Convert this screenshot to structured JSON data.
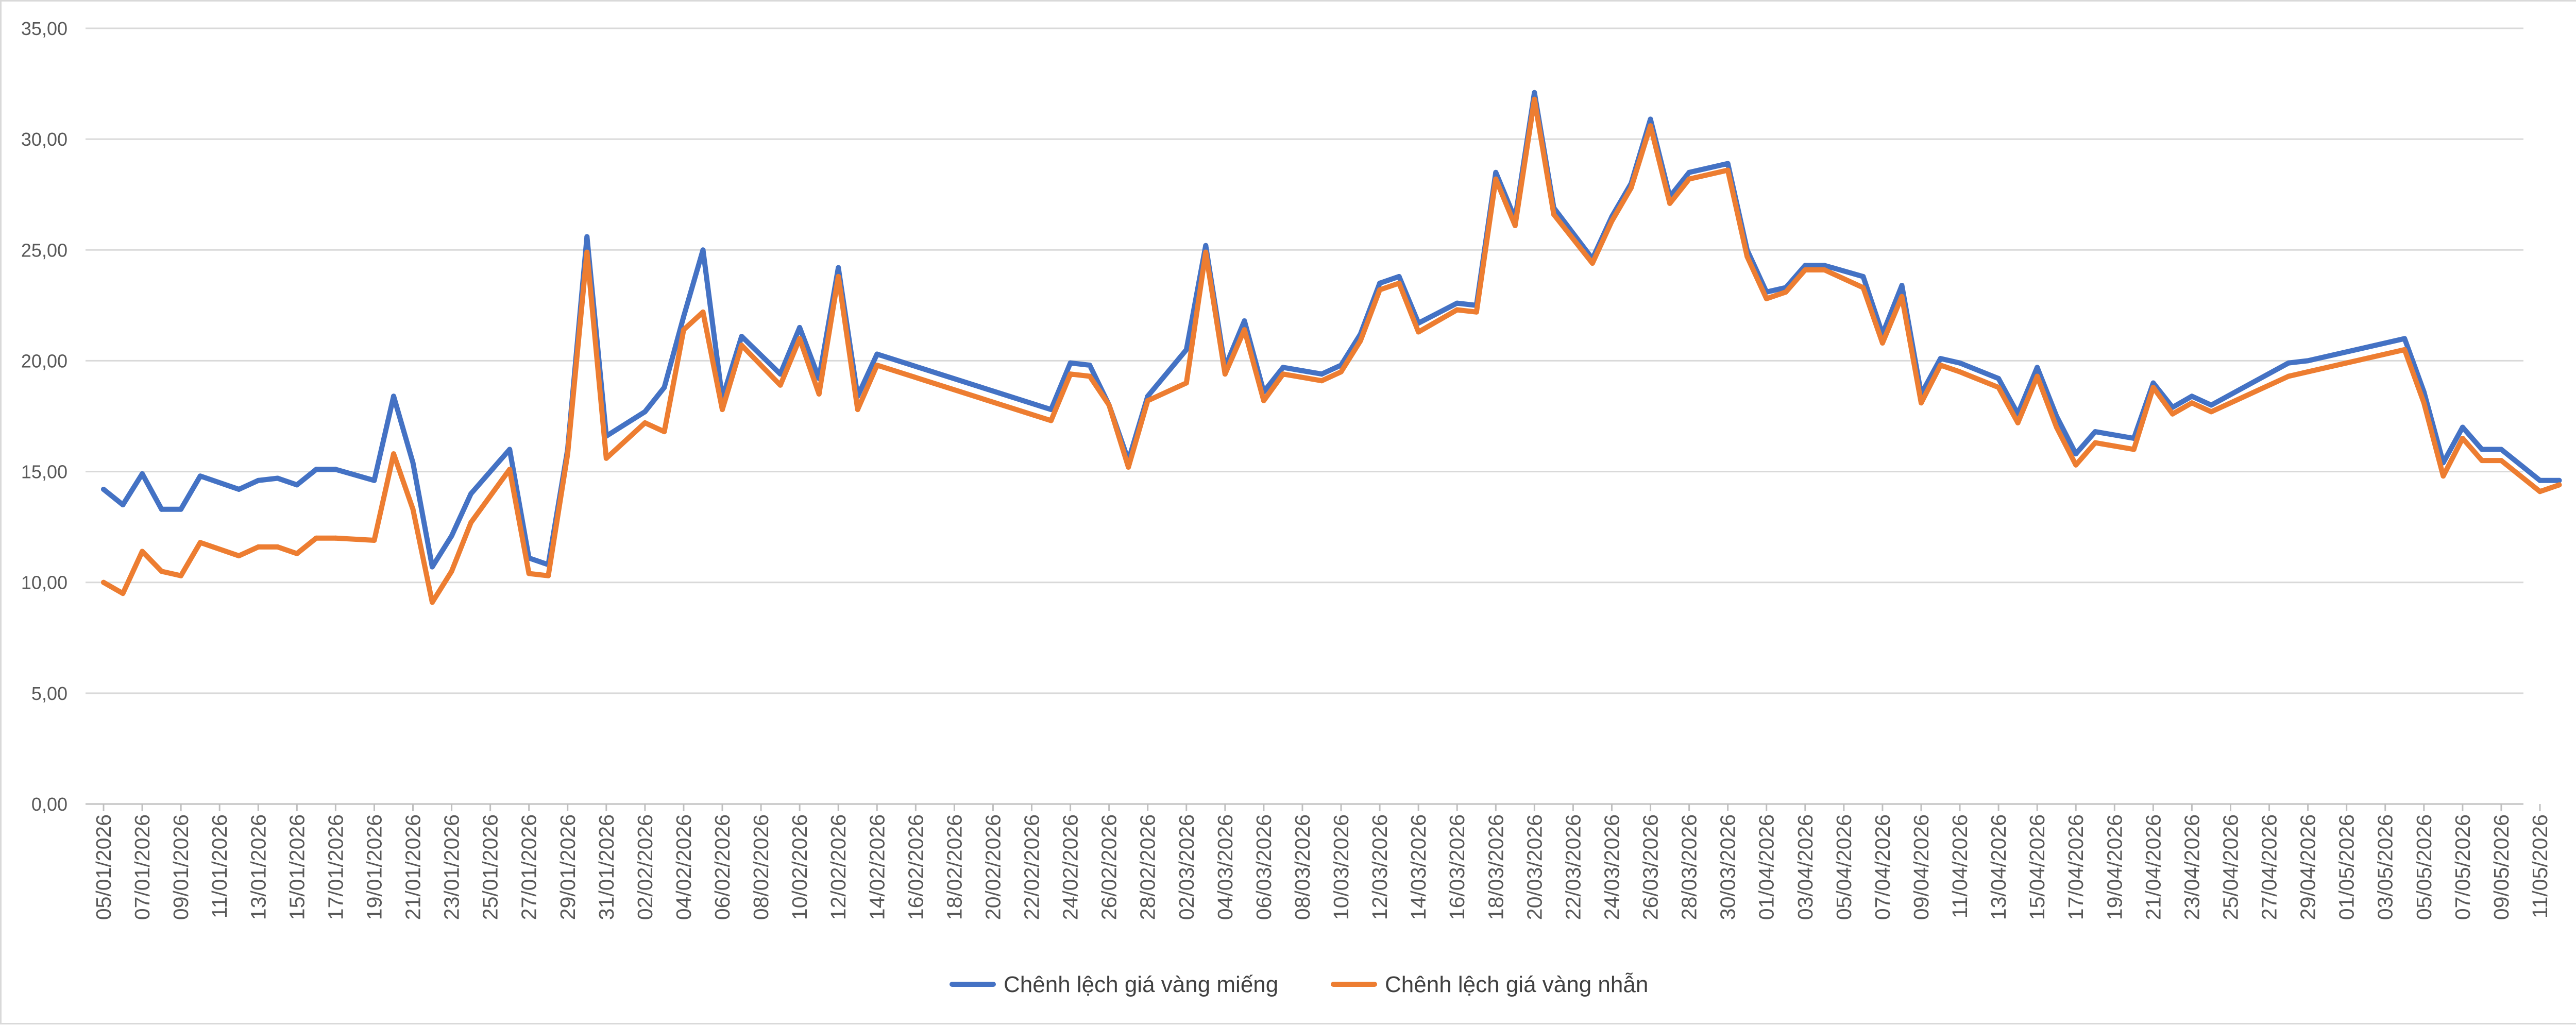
{
  "chart_data": {
    "type": "line",
    "title": "",
    "xlabel": "",
    "ylabel": "",
    "ylim": [
      0,
      35
    ],
    "y_ticks": [
      "0,00",
      "5,00",
      "10,00",
      "15,00",
      "20,00",
      "25,00",
      "30,00",
      "35,00"
    ],
    "grid": true,
    "legend_position": "bottom",
    "x": [
      "05/01/2026",
      "06/01/2026",
      "07/01/2026",
      "08/01/2026",
      "09/01/2026",
      "10/01/2026",
      "12/01/2026",
      "13/01/2026",
      "14/01/2026",
      "15/01/2026",
      "16/01/2026",
      "17/01/2026",
      "19/01/2026",
      "20/01/2026",
      "21/01/2026",
      "22/01/2026",
      "23/01/2026",
      "24/01/2026",
      "26/01/2026",
      "27/01/2026",
      "28/01/2026",
      "29/01/2026",
      "30/01/2026",
      "31/01/2026",
      "02/02/2026",
      "03/02/2026",
      "04/02/2026",
      "05/02/2026",
      "06/02/2026",
      "07/02/2026",
      "09/02/2026",
      "10/02/2026",
      "11/02/2026",
      "12/02/2026",
      "13/02/2026",
      "14/02/2026",
      "23/02/2026",
      "24/02/2026",
      "25/02/2026",
      "26/02/2026",
      "27/02/2026",
      "28/02/2026",
      "02/03/2026",
      "03/03/2026",
      "04/03/2026",
      "05/03/2026",
      "06/03/2026",
      "07/03/2026",
      "09/03/2026",
      "10/03/2026",
      "11/03/2026",
      "12/03/2026",
      "13/03/2026",
      "14/03/2026",
      "16/03/2026",
      "17/03/2026",
      "18/03/2026",
      "19/03/2026",
      "20/03/2026",
      "21/03/2026",
      "23/03/2026",
      "24/03/2026",
      "25/03/2026",
      "26/03/2026",
      "27/03/2026",
      "28/03/2026",
      "30/03/2026",
      "31/03/2026",
      "01/04/2026",
      "02/04/2026",
      "03/04/2026",
      "04/04/2026",
      "06/04/2026",
      "07/04/2026",
      "08/04/2026",
      "09/04/2026",
      "10/04/2026",
      "11/04/2026",
      "13/04/2026",
      "14/04/2026",
      "15/04/2026",
      "16/04/2026",
      "17/04/2026",
      "18/04/2026",
      "20/04/2026",
      "21/04/2026",
      "22/04/2026",
      "23/04/2026",
      "24/04/2026",
      "28/04/2026",
      "29/04/2026",
      "04/05/2026",
      "05/05/2026",
      "06/05/2026",
      "07/05/2026",
      "08/05/2026",
      "09/05/2026",
      "11/05/2026",
      "12/05/2026"
    ],
    "x_tick_labels": [
      "05/01/2026",
      "07/01/2026",
      "09/01/2026",
      "11/01/2026",
      "13/01/2026",
      "15/01/2026",
      "17/01/2026",
      "19/01/2026",
      "21/01/2026",
      "23/01/2026",
      "25/01/2026",
      "27/01/2026",
      "29/01/2026",
      "31/01/2026",
      "02/02/2026",
      "04/02/2026",
      "06/02/2026",
      "08/02/2026",
      "10/02/2026",
      "12/02/2026",
      "14/02/2026",
      "16/02/2026",
      "18/02/2026",
      "20/02/2026",
      "22/02/2026",
      "24/02/2026",
      "26/02/2026",
      "28/02/2026",
      "02/03/2026",
      "04/03/2026",
      "06/03/2026",
      "08/03/2026",
      "10/03/2026",
      "12/03/2026",
      "14/03/2026",
      "16/03/2026",
      "18/03/2026",
      "20/03/2026",
      "22/03/2026",
      "24/03/2026",
      "26/03/2026",
      "28/03/2026",
      "30/03/2026",
      "01/04/2026",
      "03/04/2026",
      "05/04/2026",
      "07/04/2026",
      "09/04/2026",
      "11/04/2026",
      "13/04/2026",
      "15/04/2026",
      "17/04/2026",
      "19/04/2026",
      "21/04/2026",
      "23/04/2026",
      "25/04/2026",
      "27/04/2026",
      "29/04/2026",
      "01/05/2026",
      "03/05/2026",
      "05/05/2026",
      "07/05/2026",
      "09/05/2026",
      "11/05/2026"
    ],
    "series": [
      {
        "name": "Chênh lệch giá vàng miếng",
        "color": "#4472c4",
        "values": [
          14.2,
          13.5,
          14.9,
          13.3,
          13.3,
          14.8,
          14.2,
          14.6,
          14.7,
          14.4,
          15.1,
          15.1,
          14.6,
          18.4,
          15.4,
          10.7,
          12.1,
          14.0,
          16.0,
          11.1,
          10.8,
          16.0,
          25.6,
          16.6,
          17.7,
          18.8,
          22.0,
          25.0,
          18.3,
          21.1,
          19.4,
          21.5,
          19.2,
          24.2,
          18.4,
          20.3,
          17.8,
          19.9,
          19.8,
          18.0,
          15.5,
          18.4,
          20.5,
          25.2,
          19.7,
          21.8,
          18.6,
          19.7,
          19.4,
          19.8,
          21.2,
          23.5,
          23.8,
          21.7,
          22.6,
          22.5,
          28.5,
          26.4,
          32.1,
          26.9,
          24.6,
          26.5,
          28.0,
          30.9,
          27.4,
          28.5,
          28.9,
          25.0,
          23.1,
          23.3,
          24.3,
          24.3,
          23.8,
          21.2,
          23.4,
          18.5,
          20.1,
          19.9,
          19.2,
          17.6,
          19.7,
          17.5,
          15.8,
          16.8,
          16.5,
          19.0,
          17.9,
          18.4,
          18.0,
          19.9,
          20.0,
          21.0,
          18.6,
          15.4,
          17.0,
          16.0,
          16.0,
          14.6,
          14.6
        ]
      },
      {
        "name": "Chênh lệch giá vàng nhẫn",
        "color": "#ed7d31",
        "values": [
          10.0,
          9.5,
          11.4,
          10.5,
          10.3,
          11.8,
          11.2,
          11.6,
          11.6,
          11.3,
          12.0,
          12.0,
          11.9,
          15.8,
          13.3,
          9.1,
          10.5,
          12.7,
          15.1,
          10.4,
          10.3,
          15.8,
          24.9,
          15.6,
          17.2,
          16.8,
          21.4,
          22.2,
          17.8,
          20.7,
          18.9,
          21.0,
          18.5,
          23.8,
          17.8,
          19.8,
          17.3,
          19.4,
          19.3,
          18.0,
          15.2,
          18.2,
          19.0,
          24.9,
          19.4,
          21.4,
          18.2,
          19.4,
          19.1,
          19.5,
          20.9,
          23.2,
          23.5,
          21.3,
          22.3,
          22.2,
          28.2,
          26.1,
          31.8,
          26.6,
          24.4,
          26.3,
          27.8,
          30.6,
          27.1,
          28.2,
          28.6,
          24.7,
          22.8,
          23.1,
          24.1,
          24.1,
          23.3,
          20.8,
          22.9,
          18.1,
          19.8,
          19.5,
          18.8,
          17.2,
          19.3,
          17.0,
          15.3,
          16.3,
          16.0,
          18.8,
          17.6,
          18.1,
          17.7,
          19.3,
          19.5,
          20.5,
          18.1,
          14.8,
          16.5,
          15.5,
          15.5,
          14.1,
          14.4
        ]
      }
    ]
  }
}
